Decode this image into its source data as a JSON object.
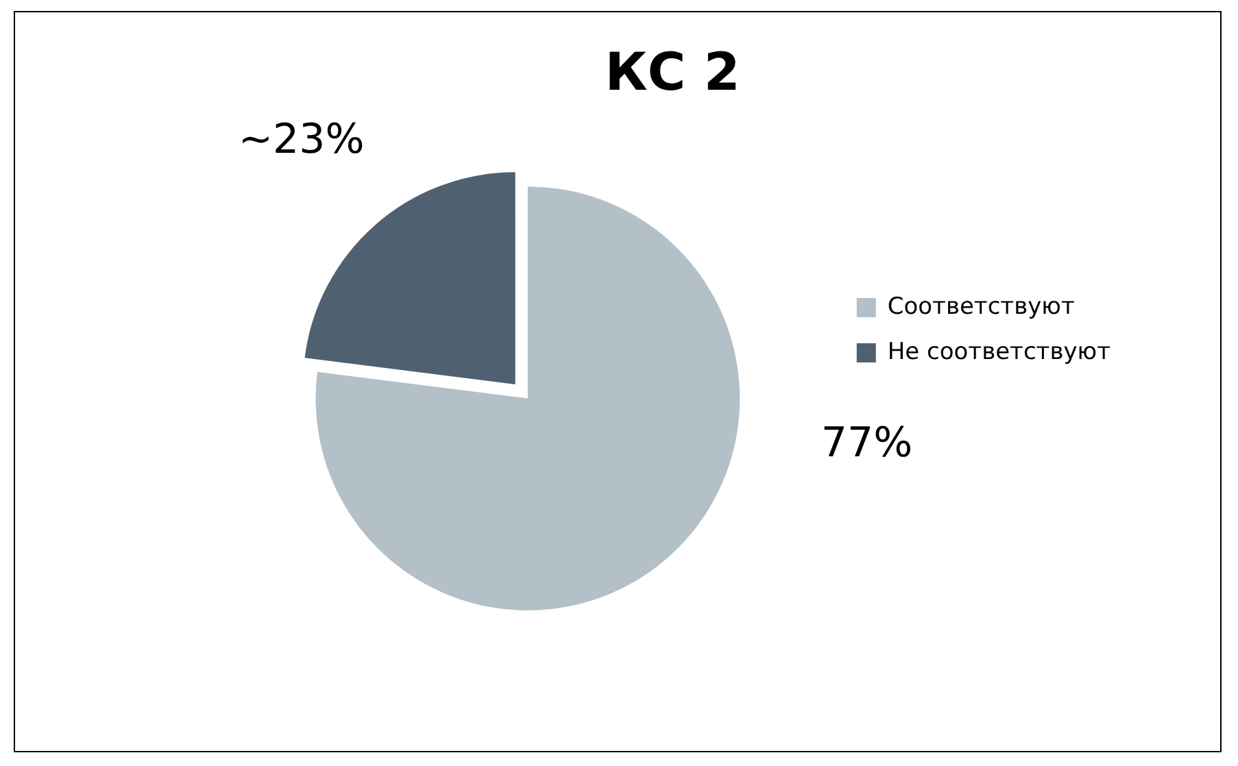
{
  "chart_data": {
    "type": "pie",
    "title": "КС 2",
    "categories": [
      "Соответствуют",
      "Не соответствуют"
    ],
    "values": [
      77,
      23
    ],
    "colors": [
      "#b4c0c8",
      "#4f6170"
    ],
    "value_labels": [
      "77%",
      "~23%"
    ],
    "legend": "right"
  }
}
